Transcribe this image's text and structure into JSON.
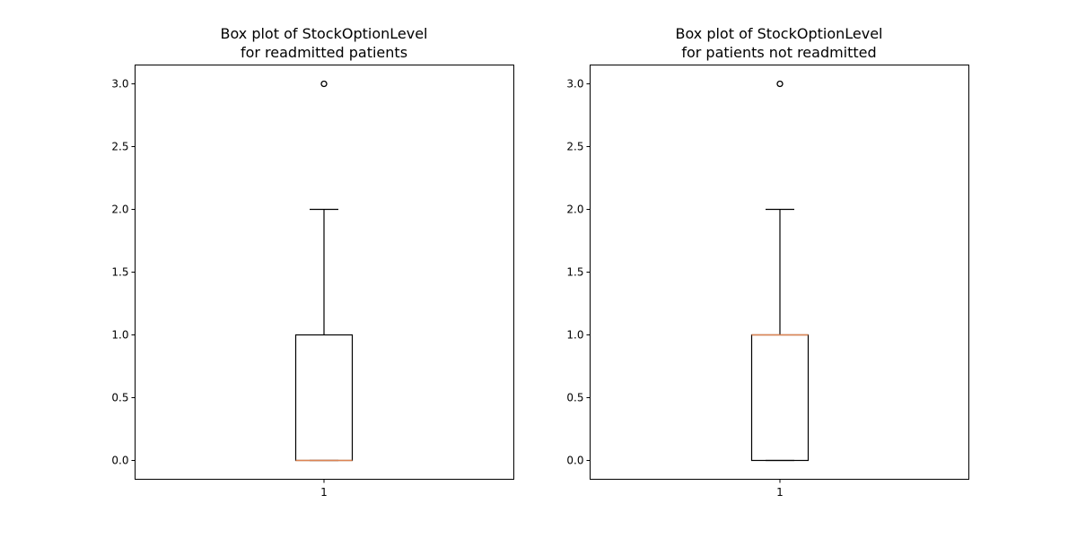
{
  "chart_data": [
    {
      "type": "box",
      "title_line1": "Box plot of StockOptionLevel",
      "title_line2": "for readmitted patients",
      "categories": [
        "1"
      ],
      "yticks": [
        "0.0",
        "0.5",
        "1.0",
        "1.5",
        "2.0",
        "2.5",
        "3.0"
      ],
      "ylim": [
        -0.15,
        3.15
      ],
      "box": {
        "whisker_low": 0.0,
        "q1": 0.0,
        "median": 0.0,
        "q3": 1.0,
        "whisker_high": 2.0,
        "fliers": [
          3.0
        ]
      }
    },
    {
      "type": "box",
      "title_line1": "Box plot of StockOptionLevel",
      "title_line2": "for patients not readmitted",
      "categories": [
        "1"
      ],
      "yticks": [
        "0.0",
        "0.5",
        "1.0",
        "1.5",
        "2.0",
        "2.5",
        "3.0"
      ],
      "ylim": [
        -0.15,
        3.15
      ],
      "box": {
        "whisker_low": 0.0,
        "q1": 0.0,
        "median": 1.0,
        "q3": 1.0,
        "whisker_high": 2.0,
        "fliers": [
          3.0
        ]
      }
    }
  ],
  "colors": {
    "median": "#dd8452",
    "frame": "#000000"
  }
}
